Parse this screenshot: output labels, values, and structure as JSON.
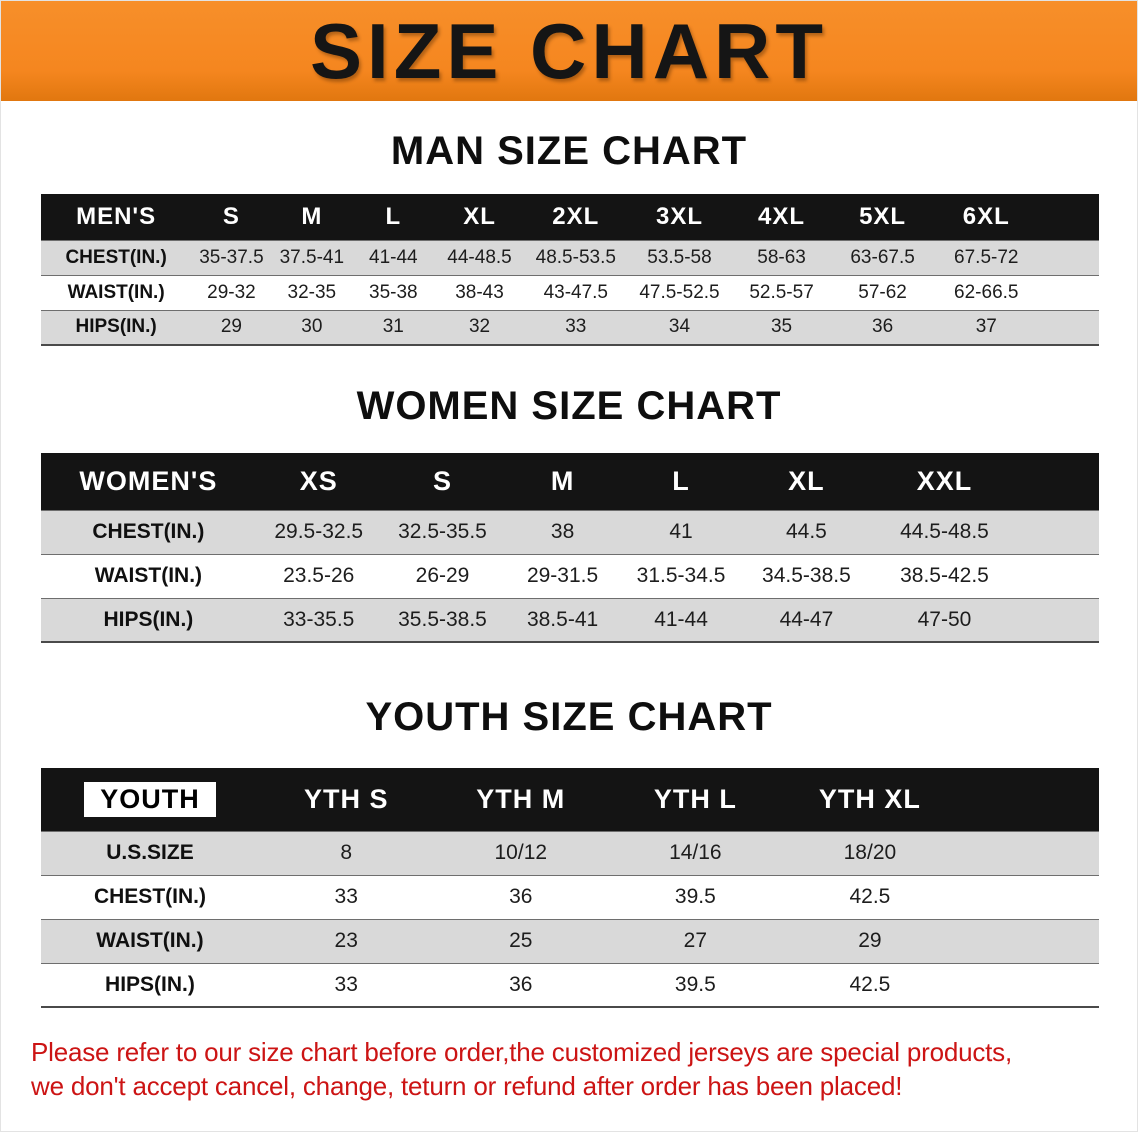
{
  "banner": {
    "title": "SIZE CHART"
  },
  "sections": [
    {
      "id": "men",
      "heading": "MAN SIZE CHART",
      "columns": [
        "MEN'S",
        "S",
        "M",
        "L",
        "XL",
        "2XL",
        "3XL",
        "4XL",
        "5XL",
        "6XL"
      ],
      "rows": [
        {
          "label": "CHEST(IN.)",
          "values": [
            "35-37.5",
            "37.5-41",
            "41-44",
            "44-48.5",
            "48.5-53.5",
            "53.5-58",
            "58-63",
            "63-67.5",
            "67.5-72"
          ]
        },
        {
          "label": "WAIST(IN.)",
          "values": [
            "29-32",
            "32-35",
            "35-38",
            "38-43",
            "43-47.5",
            "47.5-52.5",
            "52.5-57",
            "57-62",
            "62-66.5"
          ]
        },
        {
          "label": "HIPS(IN.)",
          "values": [
            "29",
            "30",
            "31",
            "32",
            "33",
            "34",
            "35",
            "36",
            "37"
          ]
        }
      ]
    },
    {
      "id": "women",
      "heading": "WOMEN SIZE CHART",
      "columns": [
        "WOMEN'S",
        "XS",
        "S",
        "M",
        "L",
        "XL",
        "XXL"
      ],
      "rows": [
        {
          "label": "CHEST(IN.)",
          "values": [
            "29.5-32.5",
            "32.5-35.5",
            "38",
            "41",
            "44.5",
            "44.5-48.5"
          ]
        },
        {
          "label": "WAIST(IN.)",
          "values": [
            "23.5-26",
            "26-29",
            "29-31.5",
            "31.5-34.5",
            "34.5-38.5",
            "38.5-42.5"
          ]
        },
        {
          "label": "HIPS(IN.)",
          "values": [
            "33-35.5",
            "35.5-38.5",
            "38.5-41",
            "41-44",
            "44-47",
            "47-50"
          ]
        }
      ]
    },
    {
      "id": "youth",
      "heading": "YOUTH SIZE CHART",
      "columns": [
        "YOUTH",
        "YTH S",
        "YTH M",
        "YTH L",
        "YTH XL"
      ],
      "rows": [
        {
          "label": "U.S.SIZE",
          "values": [
            "8",
            "10/12",
            "14/16",
            "18/20"
          ]
        },
        {
          "label": "CHEST(IN.)",
          "values": [
            "33",
            "36",
            "39.5",
            "42.5"
          ]
        },
        {
          "label": "WAIST(IN.)",
          "values": [
            "23",
            "25",
            "27",
            "29"
          ]
        },
        {
          "label": "HIPS(IN.)",
          "values": [
            "33",
            "36",
            "39.5",
            "42.5"
          ]
        }
      ]
    }
  ],
  "footer": {
    "line1": "Please refer to our size chart before order,the customized jerseys are special products,",
    "line2": "we don't accept cancel, change, teturn or refund after order has been placed!"
  },
  "colors": {
    "banner_bg": "#F5861F",
    "header_bg": "#141414",
    "stripe_bg": "#D9D9D9",
    "notice_text": "#CC1414"
  }
}
